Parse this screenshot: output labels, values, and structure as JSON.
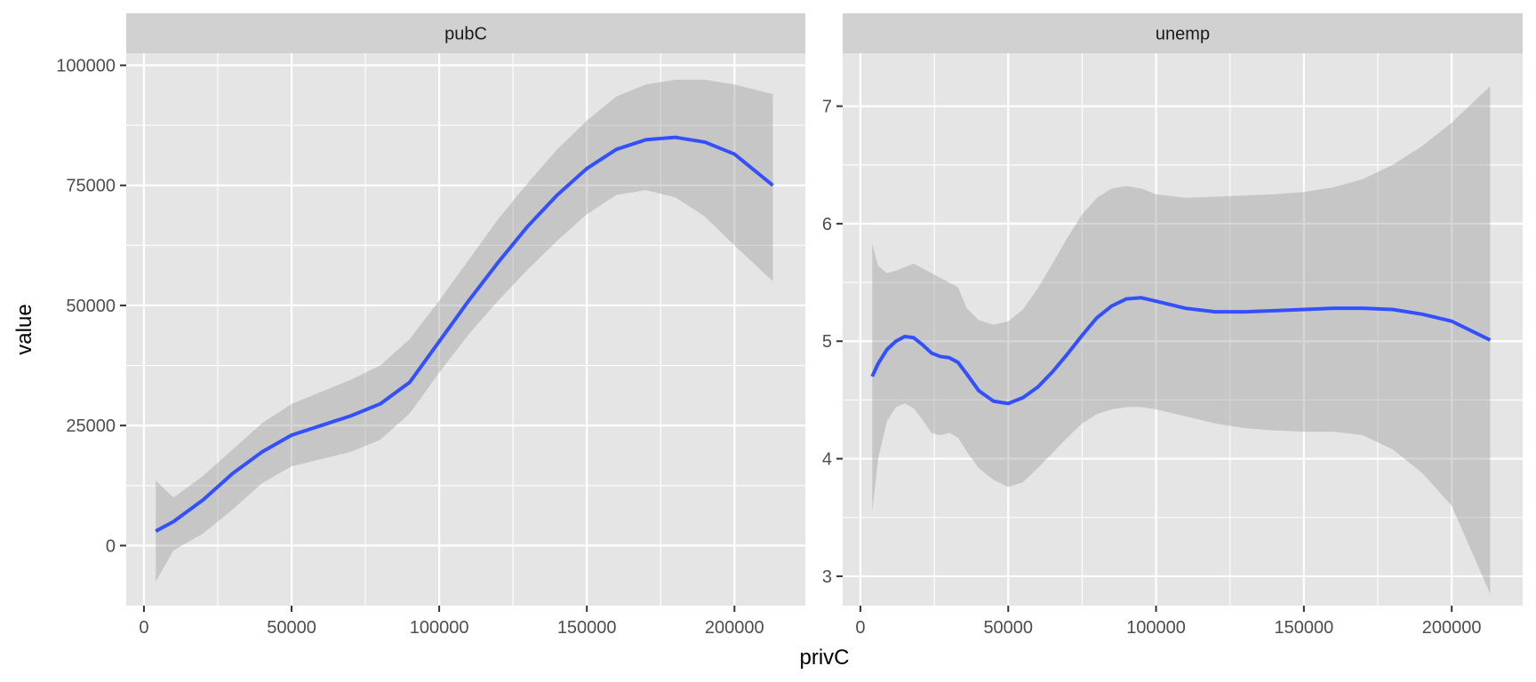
{
  "chart_data": {
    "type": "line",
    "xlabel": "privC",
    "ylabel": "value",
    "grid": true,
    "colors": {
      "line": "#3350ff",
      "ribbon": "#999999",
      "panel": "#e5e5e5",
      "strip": "#d1d1d1"
    },
    "panels": [
      {
        "title": "pubC",
        "xlim": [
          -6000,
          224000
        ],
        "ylim": [
          -12500,
          102500
        ],
        "x_ticks": [
          0,
          50000,
          100000,
          150000,
          200000
        ],
        "x_minor": [
          25000,
          75000,
          125000,
          175000
        ],
        "y_ticks": [
          0,
          25000,
          50000,
          75000,
          100000
        ],
        "y_minor": [
          12500,
          37500,
          62500,
          87500
        ],
        "line": {
          "x": [
            4000,
            10000,
            20000,
            30000,
            40000,
            50000,
            60000,
            70000,
            80000,
            90000,
            100000,
            110000,
            120000,
            130000,
            140000,
            150000,
            160000,
            170000,
            180000,
            190000,
            200000,
            213000
          ],
          "y": [
            3000,
            5000,
            9500,
            15000,
            19500,
            23000,
            25000,
            27000,
            29500,
            34000,
            42500,
            51000,
            59000,
            66500,
            73000,
            78500,
            82500,
            84500,
            85000,
            84000,
            81500,
            75000
          ],
          "lower": [
            -7500,
            -1000,
            2500,
            7500,
            13000,
            16500,
            18000,
            19500,
            22000,
            27500,
            36000,
            44000,
            51000,
            57500,
            63500,
            69000,
            73000,
            74000,
            72500,
            68500,
            62500,
            55000
          ],
          "upper": [
            13500,
            10000,
            14500,
            20000,
            25500,
            29500,
            32000,
            34500,
            37500,
            43000,
            51000,
            59500,
            68000,
            75500,
            82500,
            88500,
            93500,
            96000,
            97000,
            97000,
            96000,
            94000
          ]
        }
      },
      {
        "title": "unemp",
        "xlim": [
          -6000,
          224000
        ],
        "ylim": [
          2.75,
          7.45
        ],
        "x_ticks": [
          0,
          50000,
          100000,
          150000,
          200000
        ],
        "x_minor": [
          25000,
          75000,
          125000,
          175000
        ],
        "y_ticks": [
          3,
          4,
          5,
          6,
          7
        ],
        "y_minor": [
          3.5,
          4.5,
          5.5,
          6.5
        ],
        "line": {
          "x": [
            4000,
            6000,
            9000,
            12000,
            15000,
            18000,
            21000,
            24000,
            27000,
            30000,
            33000,
            36000,
            40000,
            45000,
            50000,
            55000,
            60000,
            65000,
            70000,
            75000,
            80000,
            85000,
            90000,
            95000,
            100000,
            110000,
            120000,
            130000,
            140000,
            150000,
            160000,
            170000,
            180000,
            190000,
            200000,
            213000
          ],
          "y": [
            4.7,
            4.81,
            4.93,
            5.0,
            5.04,
            5.03,
            4.97,
            4.9,
            4.87,
            4.86,
            4.82,
            4.72,
            4.58,
            4.49,
            4.47,
            4.52,
            4.61,
            4.74,
            4.89,
            5.05,
            5.2,
            5.3,
            5.36,
            5.37,
            5.34,
            5.28,
            5.25,
            5.25,
            5.26,
            5.27,
            5.28,
            5.28,
            5.27,
            5.23,
            5.17,
            5.01
          ],
          "lower": [
            3.55,
            4.0,
            4.32,
            4.44,
            4.47,
            4.43,
            4.33,
            4.22,
            4.2,
            4.22,
            4.18,
            4.06,
            3.92,
            3.82,
            3.76,
            3.8,
            3.92,
            4.05,
            4.18,
            4.3,
            4.38,
            4.42,
            4.44,
            4.44,
            4.42,
            4.36,
            4.3,
            4.26,
            4.24,
            4.23,
            4.23,
            4.2,
            4.08,
            3.88,
            3.6,
            2.85
          ],
          "upper": [
            5.83,
            5.64,
            5.58,
            5.6,
            5.63,
            5.66,
            5.62,
            5.58,
            5.54,
            5.5,
            5.46,
            5.28,
            5.18,
            5.14,
            5.17,
            5.27,
            5.45,
            5.66,
            5.88,
            6.08,
            6.22,
            6.3,
            6.32,
            6.3,
            6.25,
            6.22,
            6.23,
            6.24,
            6.25,
            6.27,
            6.31,
            6.38,
            6.5,
            6.66,
            6.86,
            7.17
          ]
        }
      }
    ]
  }
}
